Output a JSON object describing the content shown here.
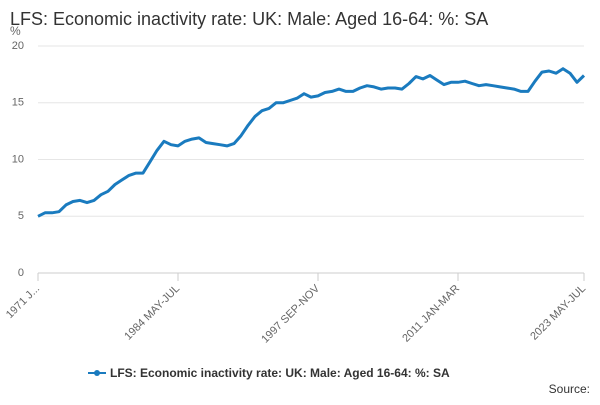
{
  "chart_data": {
    "type": "line",
    "title": "LFS: Economic inactivity rate: UK: Male: Aged 16-64: %: SA",
    "y_label": "%",
    "source": "Source:",
    "categories": [
      "1971 J...",
      null,
      null,
      null,
      null,
      null,
      null,
      null,
      null,
      null,
      null,
      null,
      null,
      null,
      null,
      null,
      null,
      null,
      null,
      null,
      "1984 MAY-JUL",
      null,
      null,
      null,
      null,
      null,
      null,
      null,
      null,
      null,
      null,
      null,
      null,
      null,
      null,
      null,
      null,
      null,
      null,
      null,
      "1997 SEP-NOV",
      null,
      null,
      null,
      null,
      null,
      null,
      null,
      null,
      null,
      null,
      null,
      null,
      null,
      null,
      null,
      null,
      null,
      null,
      null,
      "2011 JAN-MAR",
      null,
      null,
      null,
      null,
      null,
      null,
      null,
      null,
      null,
      null,
      null,
      null,
      null,
      null,
      null,
      null,
      null,
      "2023 MAY-JUL"
    ],
    "series": [
      {
        "name": "LFS: Economic inactivity rate: UK: Male: Aged 16-64: %: SA",
        "color": "#1a7bbf",
        "values": [
          5.0,
          5.3,
          5.3,
          5.4,
          6.0,
          6.3,
          6.4,
          6.2,
          6.4,
          6.9,
          7.2,
          7.8,
          8.2,
          8.6,
          8.8,
          8.8,
          9.8,
          10.8,
          11.6,
          11.3,
          11.2,
          11.6,
          11.8,
          11.9,
          11.5,
          11.4,
          11.3,
          11.2,
          11.4,
          12.1,
          13.0,
          13.8,
          14.3,
          14.5,
          15.0,
          15.0,
          15.2,
          15.4,
          15.8,
          15.5,
          15.6,
          15.9,
          16.0,
          16.2,
          16.0,
          16.0,
          16.3,
          16.5,
          16.4,
          16.2,
          16.3,
          16.3,
          16.2,
          16.7,
          17.3,
          17.1,
          17.4,
          17.0,
          16.6,
          16.8,
          16.8,
          16.9,
          16.7,
          16.5,
          16.6,
          16.5,
          16.4,
          16.3,
          16.2,
          16.0,
          16.0,
          16.9,
          17.7,
          17.8,
          17.6,
          18.0,
          17.6,
          16.8,
          17.4
        ]
      }
    ],
    "ylim": [
      0,
      20
    ],
    "yticks": [
      0,
      5,
      10,
      15,
      20
    ],
    "grid": true
  }
}
